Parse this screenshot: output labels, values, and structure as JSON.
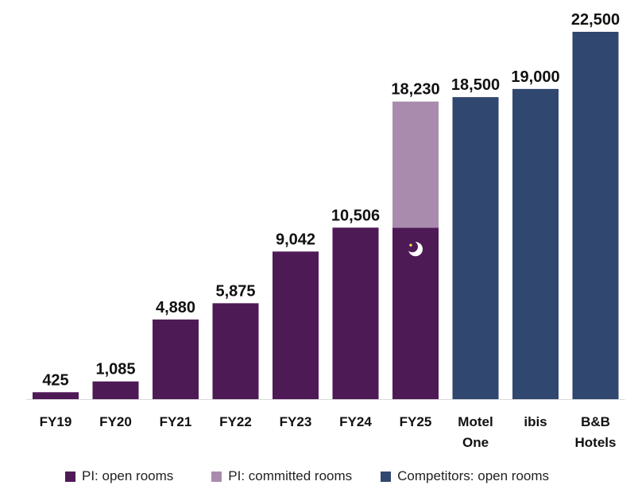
{
  "chart_data": {
    "type": "bar",
    "categories": [
      "FY19",
      "FY20",
      "FY21",
      "FY22",
      "FY23",
      "FY24",
      "FY25",
      "Motel One",
      "ibis",
      "B&B Hotels"
    ],
    "series": [
      {
        "name": "PI: open rooms",
        "color": "#4e1a56",
        "values": [
          425,
          1085,
          4880,
          5875,
          9042,
          10506,
          10506,
          null,
          null,
          null
        ]
      },
      {
        "name": "PI: committed rooms",
        "color": "#a98cad",
        "values": [
          null,
          null,
          null,
          null,
          null,
          null,
          7724,
          null,
          null,
          null
        ]
      },
      {
        "name": "Competitors: open rooms",
        "color": "#30476f",
        "values": [
          null,
          null,
          null,
          null,
          null,
          null,
          null,
          18500,
          19000,
          22500
        ]
      }
    ],
    "data_labels": [
      "425",
      "1,085",
      "4,880",
      "5,875",
      "9,042",
      "10,506",
      "18,230",
      "18,500",
      "19,000",
      "22,500"
    ],
    "ylim": [
      0,
      22500
    ],
    "grid": false,
    "legend_position": "bottom",
    "title": "",
    "xlabel": "",
    "ylabel": "",
    "fy25_marker_icon": "moon-icon"
  }
}
